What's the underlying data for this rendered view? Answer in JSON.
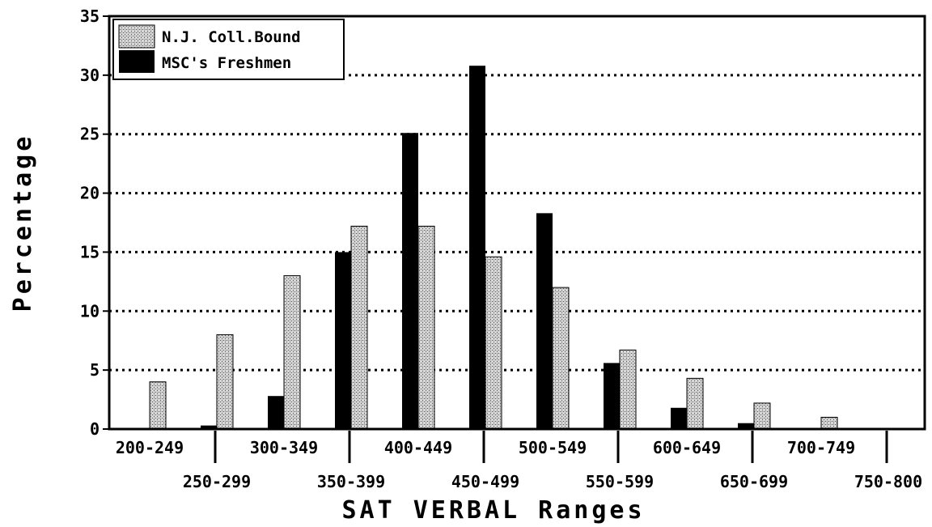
{
  "chart_data": {
    "type": "bar",
    "title": "",
    "xlabel": "SAT VERBAL Ranges",
    "ylabel": "Percentage",
    "ylim": [
      0,
      35
    ],
    "yticks": [
      0,
      5,
      10,
      15,
      20,
      25,
      30,
      35
    ],
    "grid": "horizontal dotted",
    "legend_position": "top-left",
    "categories": [
      "200-249",
      "250-299",
      "300-349",
      "350-399",
      "400-449",
      "450-499",
      "500-549",
      "550-599",
      "600-649",
      "650-699",
      "700-749",
      "750-800"
    ],
    "series": [
      {
        "name": "N.J. Coll.Bound",
        "pattern": "stippled-gray",
        "values": [
          4,
          8,
          13,
          17.2,
          17.2,
          14.6,
          12,
          6.7,
          4.3,
          2.2,
          1,
          0
        ]
      },
      {
        "name": "MSC's Freshmen",
        "pattern": "solid-black",
        "values": [
          0,
          0.3,
          2.8,
          15,
          25.1,
          30.8,
          18.3,
          5.6,
          1.8,
          0.5,
          0,
          0
        ]
      }
    ],
    "colors": {
      "bar_solid": "#000000",
      "bar_pattern_base": "#d8d8d8",
      "bar_pattern_dots": "#4a4a4a",
      "axis": "#000000",
      "grid": "#000000",
      "background": "#ffffff"
    }
  }
}
